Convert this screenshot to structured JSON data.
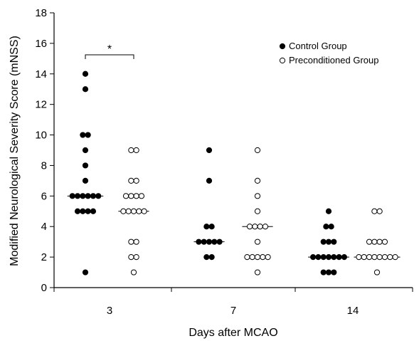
{
  "chart_data": {
    "type": "scatter",
    "xlabel": "Days after MCAO",
    "ylabel": "Modified Neurological Severity Score (mNSS)",
    "ylim": [
      0,
      18
    ],
    "yticks": [
      "0",
      "2",
      "4",
      "6",
      "8",
      "10",
      "12",
      "14",
      "16",
      "18"
    ],
    "categories": [
      "3",
      "7",
      "14"
    ],
    "grid": false,
    "legend_position": "top-right",
    "series": [
      {
        "name": "Control Group",
        "marker": "filled-circle",
        "color": "#000000",
        "groups": [
          {
            "category": "3",
            "values": [
              14,
              13,
              10,
              10,
              9,
              8,
              7,
              6,
              6,
              6,
              6,
              6,
              6,
              5,
              5,
              5,
              5,
              1
            ],
            "median": 6
          },
          {
            "category": "7",
            "values": [
              9,
              7,
              4,
              4,
              3,
              3,
              3,
              3,
              3,
              2,
              2
            ],
            "median": 3
          },
          {
            "category": "14",
            "values": [
              5,
              4,
              4,
              3,
              3,
              3,
              2,
              2,
              2,
              2,
              2,
              2,
              2,
              1,
              1,
              1
            ],
            "median": 2
          }
        ]
      },
      {
        "name": "Preconditioned Group",
        "marker": "open-circle",
        "color": "#000000",
        "groups": [
          {
            "category": "3",
            "values": [
              9,
              9,
              7,
              7,
              6,
              6,
              6,
              6,
              5,
              5,
              5,
              5,
              5,
              3,
              3,
              2,
              2,
              1
            ],
            "median": 5
          },
          {
            "category": "7",
            "values": [
              9,
              7,
              6,
              5,
              4,
              4,
              4,
              4,
              3,
              2,
              2,
              2,
              2,
              2,
              1
            ],
            "median": 4
          },
          {
            "category": "14",
            "values": [
              5,
              5,
              3,
              3,
              3,
              3,
              2,
              2,
              2,
              2,
              2,
              2,
              2,
              2,
              1
            ],
            "median": 2
          }
        ]
      }
    ],
    "annotations": [
      {
        "text": "*",
        "between": [
          "Control Group",
          "Preconditioned Group"
        ],
        "category": "3"
      }
    ]
  }
}
